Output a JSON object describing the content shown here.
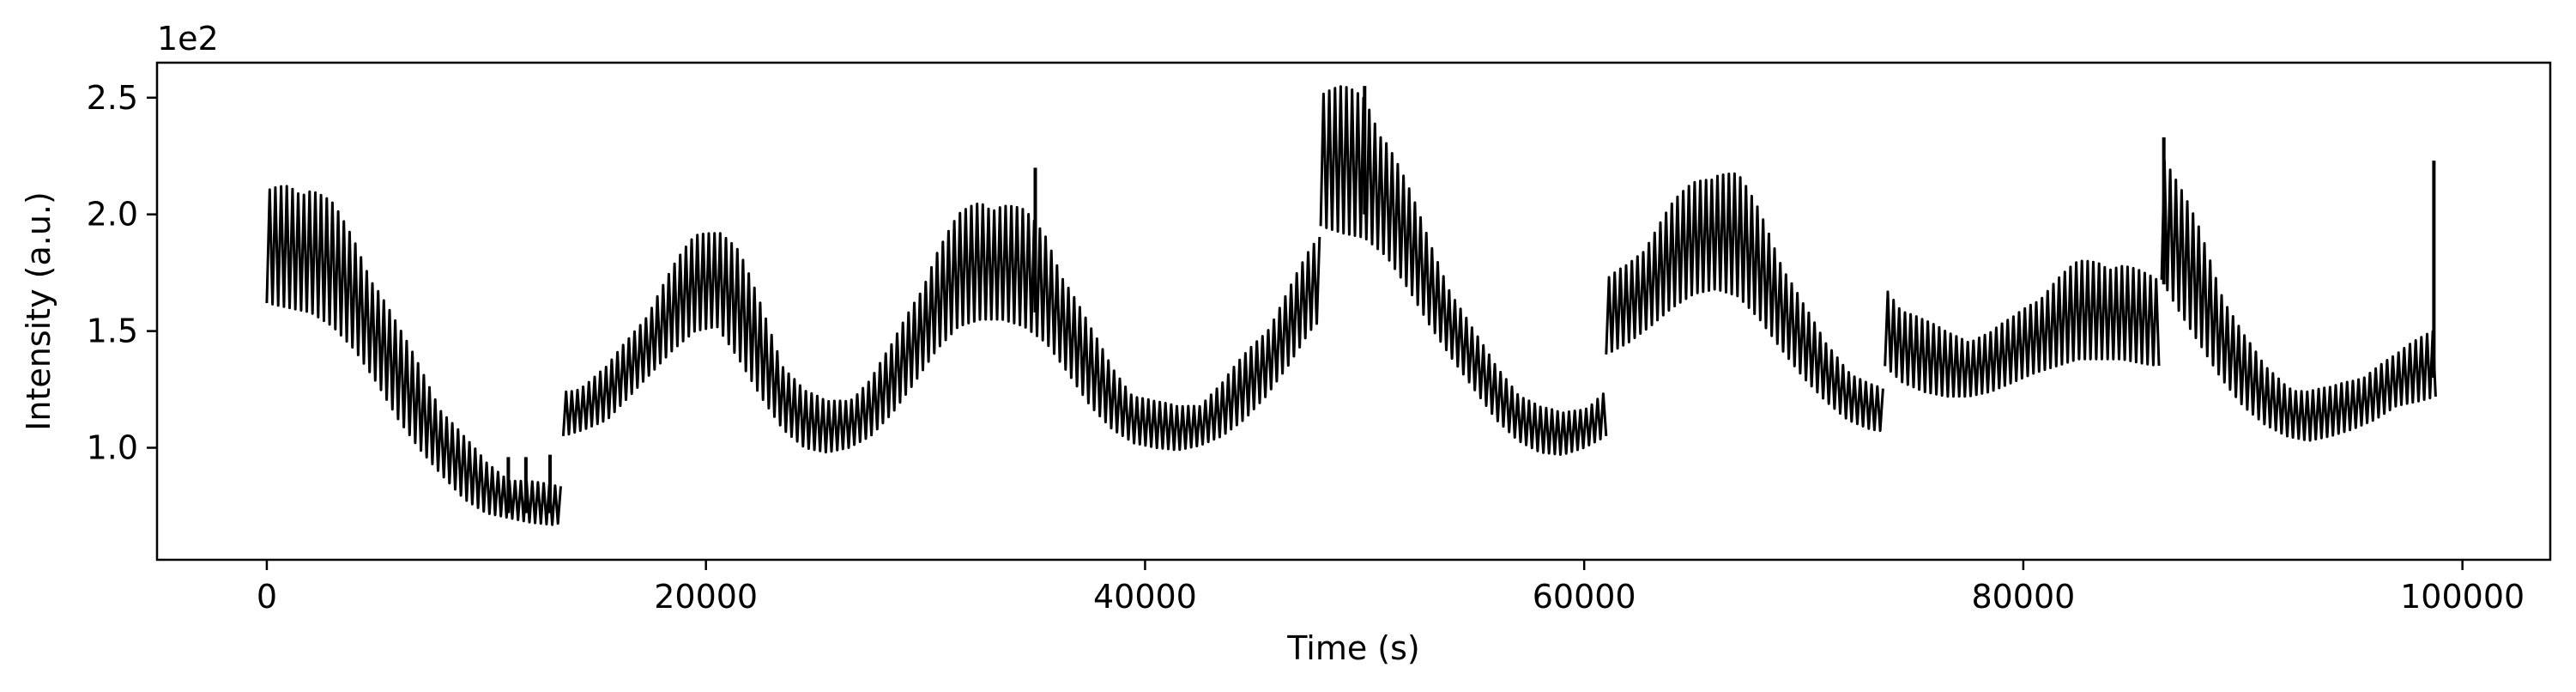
{
  "chart_data": {
    "type": "line",
    "title": "",
    "xlabel": "Time (s)",
    "ylabel": "Intensity (a.u.)",
    "y_offset_label": "1e2",
    "y_scale": 100,
    "xlim": [
      -5000,
      104000
    ],
    "ylim": [
      0.52,
      2.65
    ],
    "xticks": [
      0,
      20000,
      40000,
      60000,
      80000,
      100000
    ],
    "xtick_labels": [
      "0",
      "20000",
      "40000",
      "60000",
      "80000",
      "100000"
    ],
    "yticks": [
      1.0,
      1.5,
      2.0,
      2.5
    ],
    "ytick_labels": [
      "1.0",
      "1.5",
      "2.0",
      "2.5"
    ],
    "grid": false,
    "line_color": "#000000",
    "series": [
      {
        "segments": [
          {
            "x": [
              0,
              1000,
              2000,
              3000,
              4000,
              5000,
              6000,
              7000,
              8000,
              9000,
              10000,
              11000,
              12000,
              13000,
              13500
            ],
            "lo": [
              1.62,
              1.6,
              1.58,
              1.52,
              1.42,
              1.28,
              1.12,
              0.99,
              0.88,
              0.78,
              0.72,
              0.7,
              0.68,
              0.67,
              0.68
            ],
            "hi": [
              2.1,
              2.15,
              2.14,
              2.05,
              1.9,
              1.72,
              1.52,
              1.35,
              1.18,
              1.05,
              0.94,
              0.88,
              0.86,
              0.84,
              0.84
            ]
          },
          {
            "x": [
              13500,
              14500,
              15500,
              16500,
              17500,
              18500,
              19500,
              20500,
              21500,
              22500,
              23500,
              24500,
              25500,
              26500,
              27500,
              28500,
              29500,
              30500,
              31500,
              32500,
              33500,
              34500,
              35500,
              36500,
              37500,
              38500,
              39500,
              40500,
              41500,
              42500,
              43500,
              44500,
              45500,
              46500,
              47500,
              48000
            ],
            "lo": [
              1.05,
              1.08,
              1.12,
              1.22,
              1.32,
              1.42,
              1.5,
              1.52,
              1.38,
              1.22,
              1.08,
              1.0,
              0.98,
              1.0,
              1.05,
              1.15,
              1.28,
              1.42,
              1.52,
              1.55,
              1.55,
              1.52,
              1.45,
              1.32,
              1.18,
              1.08,
              1.02,
              1.0,
              0.99,
              1.01,
              1.05,
              1.12,
              1.22,
              1.35,
              1.5,
              1.55
            ],
            "hi": [
              1.25,
              1.28,
              1.35,
              1.48,
              1.62,
              1.78,
              1.92,
              1.98,
              1.85,
              1.62,
              1.38,
              1.25,
              1.2,
              1.22,
              1.3,
              1.45,
              1.65,
              1.85,
              2.0,
              2.08,
              2.07,
              2.02,
              1.92,
              1.72,
              1.52,
              1.35,
              1.24,
              1.2,
              1.18,
              1.2,
              1.28,
              1.4,
              1.52,
              1.68,
              1.85,
              1.92
            ]
          },
          {
            "x": [
              48000,
              49000,
              50000,
              51000,
              52000,
              53000,
              54000,
              55000,
              56000,
              57000,
              58000,
              59000,
              60000,
              61000
            ],
            "lo": [
              1.95,
              1.92,
              1.9,
              1.82,
              1.68,
              1.52,
              1.38,
              1.25,
              1.12,
              1.03,
              0.98,
              0.97,
              1.0,
              1.05
            ],
            "hi": [
              2.55,
              2.55,
              2.52,
              2.35,
              2.12,
              1.88,
              1.68,
              1.5,
              1.35,
              1.25,
              1.18,
              1.15,
              1.18,
              1.25
            ]
          },
          {
            "x": [
              61000,
              62000,
              63000,
              64000,
              65000,
              66000,
              67000,
              68000,
              69000,
              70000,
              71000,
              72000,
              73000,
              73700
            ],
            "lo": [
              1.4,
              1.45,
              1.52,
              1.6,
              1.66,
              1.68,
              1.65,
              1.55,
              1.42,
              1.3,
              1.2,
              1.12,
              1.08,
              1.07
            ],
            "hi": [
              1.72,
              1.8,
              1.92,
              2.05,
              2.15,
              2.22,
              2.18,
              2.02,
              1.82,
              1.62,
              1.45,
              1.35,
              1.28,
              1.25
            ]
          },
          {
            "x": [
              73700,
              74500,
              75500,
              76500,
              77500,
              78500,
              79500,
              80500,
              81500,
              82500,
              83500,
              84500,
              85500,
              86300
            ],
            "lo": [
              1.35,
              1.28,
              1.24,
              1.22,
              1.22,
              1.24,
              1.28,
              1.32,
              1.35,
              1.38,
              1.38,
              1.38,
              1.36,
              1.35
            ],
            "hi": [
              1.7,
              1.62,
              1.55,
              1.5,
              1.48,
              1.5,
              1.56,
              1.65,
              1.73,
              1.8,
              1.82,
              1.8,
              1.75,
              1.72
            ]
          },
          {
            "x": [
              86300,
              87000,
              88000,
              89000,
              90000,
              91000,
              92000,
              93000,
              94000,
              95000,
              96000,
              97000,
              98000,
              98800
            ],
            "lo": [
              1.72,
              1.6,
              1.45,
              1.3,
              1.18,
              1.1,
              1.05,
              1.03,
              1.05,
              1.08,
              1.12,
              1.18,
              1.2,
              1.22
            ],
            "hi": [
              2.3,
              2.15,
              1.95,
              1.7,
              1.5,
              1.35,
              1.28,
              1.25,
              1.26,
              1.3,
              1.35,
              1.4,
              1.48,
              1.55
            ]
          }
        ],
        "spikes": [
          {
            "x": 11000,
            "lo": 0.72,
            "hi": 0.96
          },
          {
            "x": 11800,
            "lo": 0.72,
            "hi": 0.96
          },
          {
            "x": 12900,
            "lo": 0.72,
            "hi": 0.97
          },
          {
            "x": 35000,
            "lo": 1.58,
            "hi": 2.2
          },
          {
            "x": 50000,
            "lo": 2.0,
            "hi": 2.55
          },
          {
            "x": 86400,
            "lo": 1.7,
            "hi": 2.33
          },
          {
            "x": 98700,
            "lo": 1.3,
            "hi": 2.23
          }
        ]
      }
    ]
  }
}
